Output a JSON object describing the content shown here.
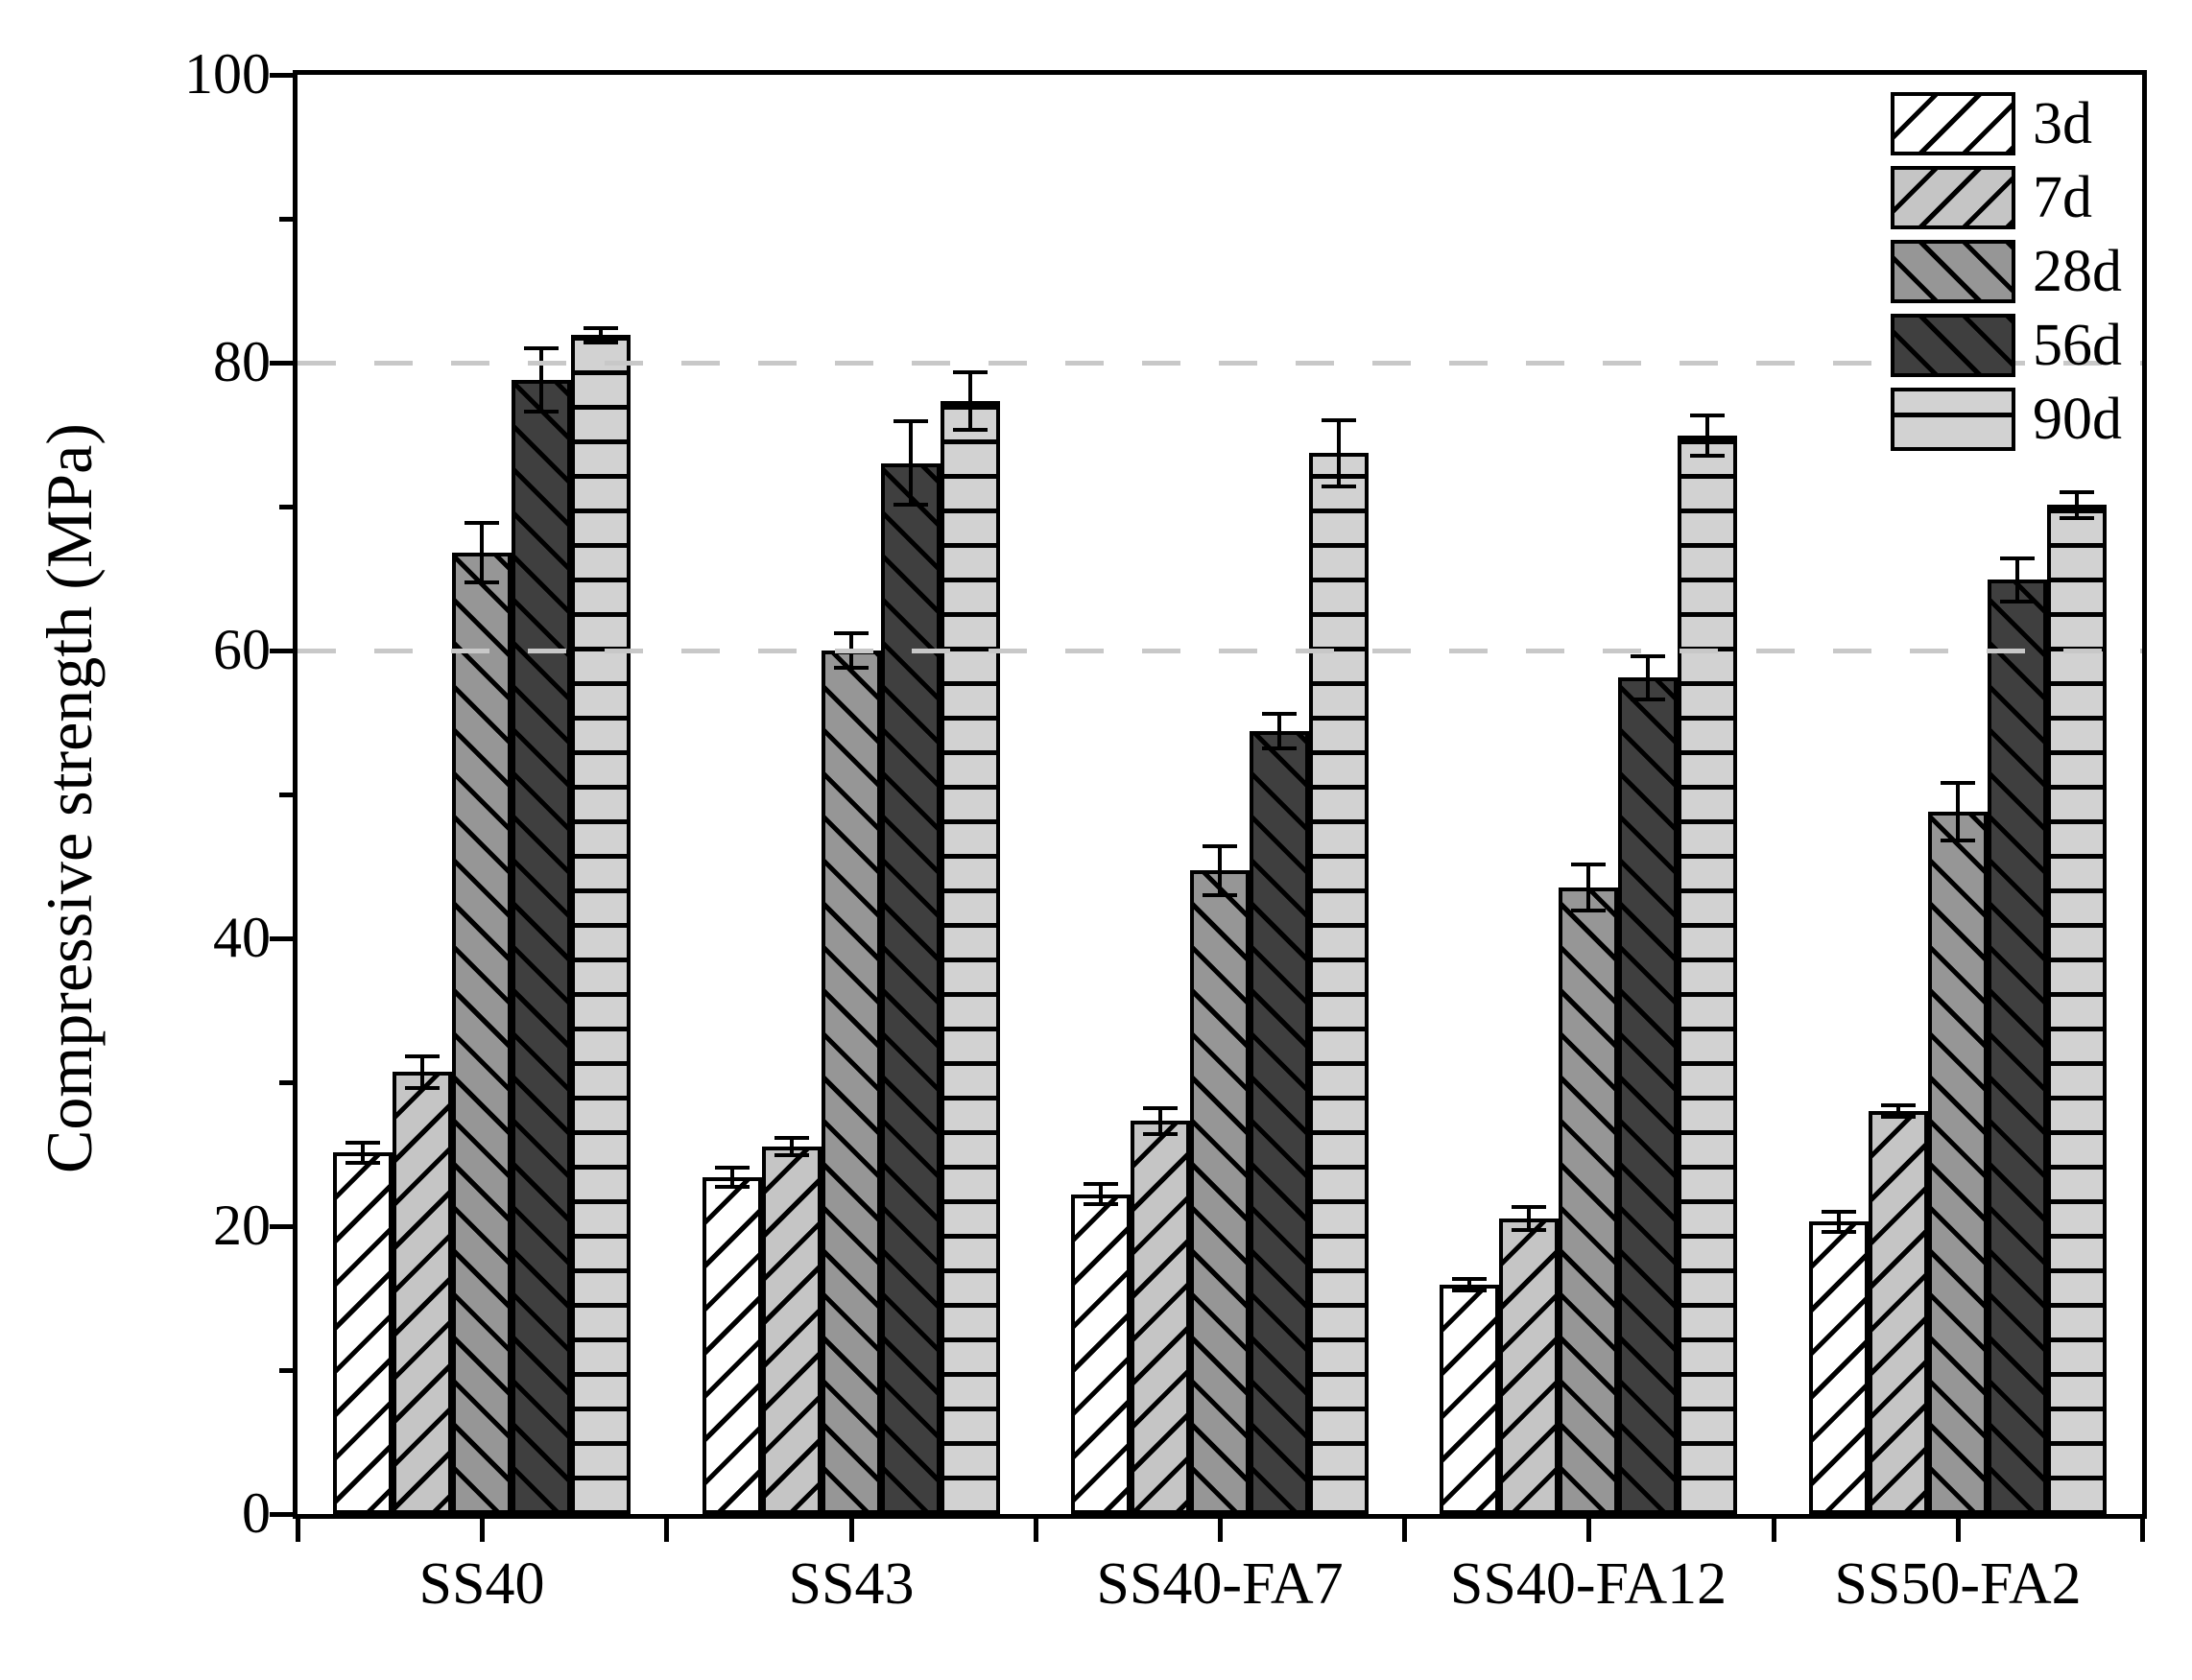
{
  "chart_data": {
    "type": "bar",
    "title": "",
    "xlabel": "",
    "ylabel": "Compressive strength (MPa)",
    "ylim": [
      0,
      100
    ],
    "y_major_ticks": [
      0,
      20,
      40,
      60,
      80,
      100
    ],
    "y_minor_ticks": [
      10,
      30,
      50,
      70,
      90
    ],
    "gridlines_at": [
      60,
      80
    ],
    "grid_style": "dashed",
    "grid_on": true,
    "legend_position": "top-right-inside",
    "error_bars": true,
    "categories": [
      "SS40",
      "SS43",
      "SS40-FA7",
      "SS40-FA12",
      "SS50-FA2"
    ],
    "series": [
      {
        "name": "3d",
        "fill": "#ffffff",
        "pattern": "diag-up",
        "values": [
          25.1,
          23.4,
          22.2,
          15.9,
          20.3
        ],
        "errors": [
          0.7,
          0.7,
          0.7,
          0.4,
          0.7
        ]
      },
      {
        "name": "7d",
        "fill": "#c5c5c5",
        "pattern": "diag-up",
        "values": [
          30.7,
          25.5,
          27.3,
          20.5,
          28.0
        ],
        "errors": [
          1.1,
          0.6,
          0.9,
          0.8,
          0.4
        ]
      },
      {
        "name": "28d",
        "fill": "#969696",
        "pattern": "diag-down",
        "values": [
          66.8,
          60.0,
          44.7,
          43.5,
          48.8
        ],
        "errors": [
          2.1,
          1.2,
          1.7,
          1.6,
          2.0
        ]
      },
      {
        "name": "56d",
        "fill": "#3f3f3f",
        "pattern": "diag-down",
        "values": [
          78.8,
          73.0,
          54.4,
          58.1,
          64.9
        ],
        "errors": [
          2.2,
          2.9,
          1.2,
          1.5,
          1.5
        ]
      },
      {
        "name": "90d",
        "fill": "#d2d2d2",
        "pattern": "horizontal",
        "values": [
          81.9,
          77.3,
          73.7,
          74.9,
          70.1
        ],
        "errors": [
          0.5,
          2.0,
          2.3,
          1.4,
          0.9
        ]
      }
    ],
    "colors": {
      "axis": "#000000",
      "hatch": "#000000",
      "gridline": "#c8c8c8",
      "error_bar": "#000000",
      "background": "#ffffff"
    }
  }
}
